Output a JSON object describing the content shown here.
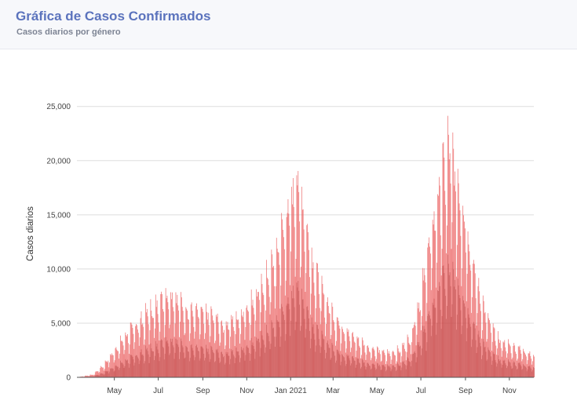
{
  "header": {
    "title": "Gráfica de Casos Confirmados",
    "subtitle": "Casos diarios por género"
  },
  "colors": {
    "title": "#5b73bd",
    "series_outer": "#ea5b5b",
    "series_inner": "#b23a3a",
    "grid": "#dddddd"
  },
  "chart_data": {
    "type": "bar",
    "ylabel": "Casos diarios",
    "ylim": [
      0,
      26500
    ],
    "yticks": [
      {
        "value": 0,
        "label": "0"
      },
      {
        "value": 5000,
        "label": "5,000"
      },
      {
        "value": 10000,
        "label": "10,000"
      },
      {
        "value": 15000,
        "label": "15,000"
      },
      {
        "value": 20000,
        "label": "20,000"
      },
      {
        "value": 25000,
        "label": "25,000"
      }
    ],
    "x_range": [
      "2020-03-10",
      "2021-12-05"
    ],
    "xticks": [
      {
        "date": "2020-05-01",
        "label": "May"
      },
      {
        "date": "2020-07-01",
        "label": "Jul"
      },
      {
        "date": "2020-09-01",
        "label": "Sep"
      },
      {
        "date": "2020-11-01",
        "label": "Nov"
      },
      {
        "date": "2021-01-01",
        "label": "Jan 2021"
      },
      {
        "date": "2021-03-01",
        "label": "Mar"
      },
      {
        "date": "2021-05-01",
        "label": "May"
      },
      {
        "date": "2021-07-01",
        "label": "Jul"
      },
      {
        "date": "2021-09-01",
        "label": "Sep"
      },
      {
        "date": "2021-11-01",
        "label": "Nov"
      }
    ],
    "grid": true,
    "legend": "none",
    "series": [
      {
        "role": "total",
        "daily_envelope": [
          [
            "2020-03-10",
            0
          ],
          [
            "2020-04-01",
            300
          ],
          [
            "2020-04-15",
            1200
          ],
          [
            "2020-05-01",
            2800
          ],
          [
            "2020-05-15",
            4200
          ],
          [
            "2020-06-01",
            5500
          ],
          [
            "2020-06-15",
            6500
          ],
          [
            "2020-07-01",
            7500
          ],
          [
            "2020-07-15",
            8800
          ],
          [
            "2020-08-01",
            7700
          ],
          [
            "2020-08-15",
            6800
          ],
          [
            "2020-09-01",
            6600
          ],
          [
            "2020-09-15",
            6300
          ],
          [
            "2020-10-01",
            5300
          ],
          [
            "2020-10-15",
            6000
          ],
          [
            "2020-11-01",
            7200
          ],
          [
            "2020-11-15",
            8400
          ],
          [
            "2020-12-01",
            10500
          ],
          [
            "2020-12-15",
            13500
          ],
          [
            "2021-01-01",
            17800
          ],
          [
            "2021-01-07",
            20000
          ],
          [
            "2021-01-15",
            18500
          ],
          [
            "2021-02-01",
            11500
          ],
          [
            "2021-02-15",
            8500
          ],
          [
            "2021-03-01",
            6500
          ],
          [
            "2021-03-15",
            5000
          ],
          [
            "2021-04-01",
            4000
          ],
          [
            "2021-04-15",
            3300
          ],
          [
            "2021-05-01",
            2800
          ],
          [
            "2021-05-15",
            2500
          ],
          [
            "2021-06-01",
            2800
          ],
          [
            "2021-06-15",
            4000
          ],
          [
            "2021-07-01",
            8500
          ],
          [
            "2021-07-15",
            15000
          ],
          [
            "2021-08-01",
            21000
          ],
          [
            "2021-08-08",
            23500
          ],
          [
            "2021-08-15",
            22000
          ],
          [
            "2021-09-01",
            16000
          ],
          [
            "2021-09-15",
            10000
          ],
          [
            "2021-10-01",
            6000
          ],
          [
            "2021-10-15",
            4000
          ],
          [
            "2021-11-01",
            3300
          ],
          [
            "2021-11-15",
            3000
          ],
          [
            "2021-12-05",
            2200
          ]
        ]
      },
      {
        "role": "genero",
        "daily_envelope": [
          [
            "2020-03-10",
            0
          ],
          [
            "2020-04-01",
            120
          ],
          [
            "2020-04-15",
            450
          ],
          [
            "2020-05-01",
            1100
          ],
          [
            "2020-05-15",
            1700
          ],
          [
            "2020-06-01",
            2300
          ],
          [
            "2020-06-15",
            2800
          ],
          [
            "2020-07-01",
            3300
          ],
          [
            "2020-07-15",
            4000
          ],
          [
            "2020-08-01",
            3500
          ],
          [
            "2020-08-15",
            3000
          ],
          [
            "2020-09-01",
            2900
          ],
          [
            "2020-09-15",
            2800
          ],
          [
            "2020-10-01",
            2400
          ],
          [
            "2020-10-15",
            2700
          ],
          [
            "2020-11-01",
            3200
          ],
          [
            "2020-11-15",
            3800
          ],
          [
            "2020-12-01",
            4700
          ],
          [
            "2020-12-15",
            6000
          ],
          [
            "2021-01-01",
            8000
          ],
          [
            "2021-01-07",
            9400
          ],
          [
            "2021-01-15",
            8600
          ],
          [
            "2021-02-01",
            5300
          ],
          [
            "2021-02-15",
            3900
          ],
          [
            "2021-03-01",
            3000
          ],
          [
            "2021-03-15",
            2300
          ],
          [
            "2021-04-01",
            1900
          ],
          [
            "2021-04-15",
            1500
          ],
          [
            "2021-05-01",
            1300
          ],
          [
            "2021-05-15",
            1150
          ],
          [
            "2021-06-01",
            1300
          ],
          [
            "2021-06-15",
            1900
          ],
          [
            "2021-07-01",
            4000
          ],
          [
            "2021-07-15",
            7100
          ],
          [
            "2021-08-01",
            10000
          ],
          [
            "2021-08-08",
            11000
          ],
          [
            "2021-08-15",
            10400
          ],
          [
            "2021-09-01",
            7600
          ],
          [
            "2021-09-15",
            4700
          ],
          [
            "2021-10-01",
            2800
          ],
          [
            "2021-10-15",
            1900
          ],
          [
            "2021-11-01",
            1550
          ],
          [
            "2021-11-15",
            1400
          ],
          [
            "2021-12-05",
            1000
          ]
        ]
      }
    ]
  }
}
